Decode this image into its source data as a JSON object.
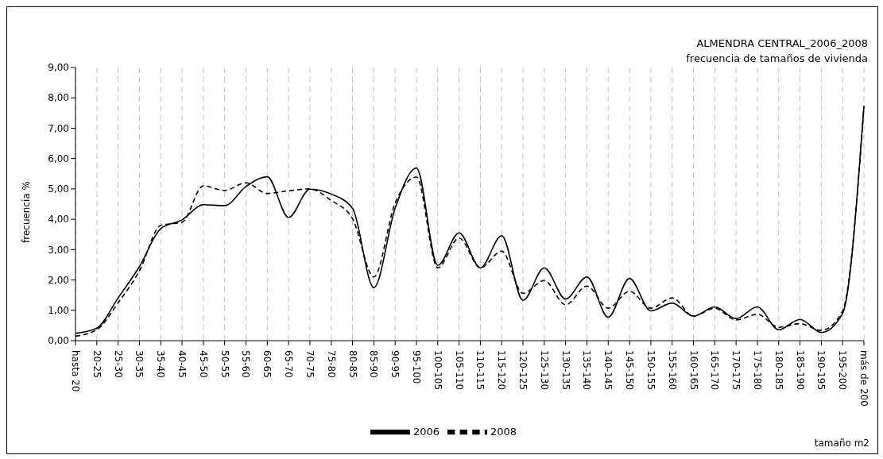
{
  "chart_data": {
    "type": "line",
    "title": "ALMENDRA CENTRAL_2006_2008",
    "subtitle": "frecuencia de tamaños de vivienda",
    "xlabel": "tamaño m2",
    "ylabel": "frecuencia %",
    "categories": [
      "hasta 20",
      "20-25",
      "25-30",
      "30-35",
      "35-40",
      "40-45",
      "45-50",
      "50-55",
      "55-60",
      "60-65",
      "65-70",
      "70-75",
      "75-80",
      "80-85",
      "85-90",
      "90-95",
      "95-100",
      "100-105",
      "105-110",
      "110-115",
      "115-120",
      "120-125",
      "125-130",
      "130-135",
      "135-140",
      "140-145",
      "145-150",
      "150-155",
      "155-160",
      "160-165",
      "165-170",
      "170-175",
      "175-180",
      "180-185",
      "185-190",
      "190-195",
      "195-200",
      "más de 200"
    ],
    "series": [
      {
        "name": "2006",
        "color": "#000000",
        "line_style": "solid",
        "values": [
          0.24,
          0.41,
          1.41,
          2.44,
          3.69,
          3.98,
          4.48,
          4.45,
          5.08,
          5.4,
          4.06,
          4.99,
          4.83,
          4.36,
          1.75,
          4.36,
          5.69,
          2.48,
          3.55,
          2.4,
          3.46,
          1.33,
          2.4,
          1.37,
          2.1,
          0.77,
          2.05,
          0.98,
          1.24,
          0.81,
          1.11,
          0.73,
          1.11,
          0.36,
          0.7,
          0.27,
          0.9,
          7.74
        ]
      },
      {
        "name": "2008",
        "color": "#000000",
        "line_style": "dashed",
        "values": [
          0.15,
          0.36,
          1.25,
          2.3,
          3.8,
          3.9,
          5.1,
          4.95,
          5.2,
          4.85,
          4.94,
          5.0,
          4.62,
          4.02,
          2.1,
          4.53,
          5.39,
          2.4,
          3.38,
          2.4,
          2.95,
          1.56,
          1.98,
          1.18,
          1.8,
          1.07,
          1.63,
          1.07,
          1.41,
          0.81,
          1.07,
          0.68,
          0.87,
          0.44,
          0.56,
          0.34,
          0.98,
          7.7
        ]
      }
    ],
    "ylim": [
      0,
      9
    ],
    "yticks": [
      {
        "value": 0,
        "label": "0,00"
      },
      {
        "value": 1,
        "label": "1,00"
      },
      {
        "value": 2,
        "label": "2,00"
      },
      {
        "value": 3,
        "label": "3,00"
      },
      {
        "value": 4,
        "label": "4,00"
      },
      {
        "value": 5,
        "label": "5,00"
      },
      {
        "value": 6,
        "label": "6,00"
      },
      {
        "value": 7,
        "label": "7,00"
      },
      {
        "value": 8,
        "label": "8,00"
      },
      {
        "value": 9,
        "label": "9,00"
      }
    ],
    "grid": "x",
    "legend": "bottom",
    "marker": "none"
  }
}
